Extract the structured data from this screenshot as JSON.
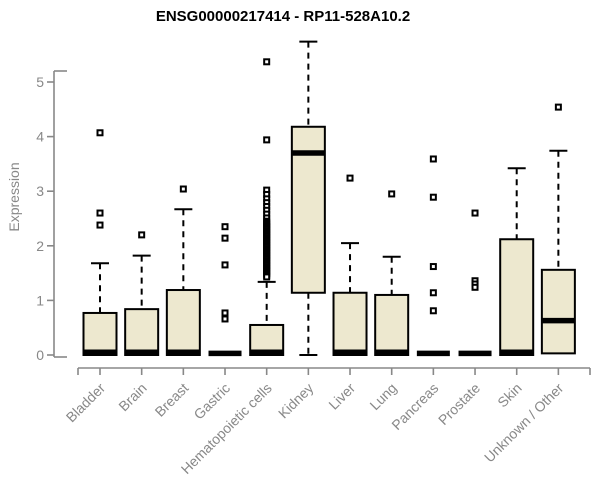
{
  "chart_data": {
    "type": "boxplot",
    "title": "ENSG00000217414 - RP11-528A10.2",
    "xlabel": "",
    "ylabel": "Expression",
    "ylim": [
      0,
      5.8
    ],
    "yticks": [
      0,
      1,
      2,
      3,
      4,
      5
    ],
    "grid": false,
    "legend": null,
    "categories": [
      "Bladder",
      "Brain",
      "Breast",
      "Gastric",
      "Hematopoietic cells",
      "Kidney",
      "Liver",
      "Lung",
      "Pancreas",
      "Prostate",
      "Skin",
      "Unknown / Other"
    ],
    "series": [
      {
        "name": "Bladder",
        "low": 0,
        "q1": 0,
        "median": 0.05,
        "q3": 0.77,
        "high": 1.68,
        "outliers": [
          4.07,
          2.6,
          2.38
        ]
      },
      {
        "name": "Brain",
        "low": 0,
        "q1": 0,
        "median": 0.05,
        "q3": 0.84,
        "high": 1.82,
        "outliers": [
          2.2
        ]
      },
      {
        "name": "Breast",
        "low": 0,
        "q1": 0,
        "median": 0.05,
        "q3": 1.19,
        "high": 2.67,
        "outliers": [
          3.04
        ]
      },
      {
        "name": "Gastric",
        "low": 0,
        "q1": 0,
        "median": 0.03,
        "q3": 0,
        "high": 0,
        "outliers": [
          2.35,
          2.14,
          1.65,
          0.77,
          0.66
        ]
      },
      {
        "name": "Hematopoietic cells",
        "low": 0,
        "q1": 0,
        "median": 0.05,
        "q3": 0.55,
        "high": 1.34,
        "outliers": [
          5.37,
          3.94,
          3.02,
          2.94,
          2.86,
          2.79,
          2.72,
          2.65,
          2.58,
          2.51,
          2.45,
          2.42,
          2.39,
          2.36,
          2.33,
          2.3,
          2.27,
          2.24,
          2.21,
          2.18,
          2.15,
          2.12,
          2.09,
          2.06,
          2.03,
          2.0,
          1.97,
          1.94,
          1.91,
          1.88,
          1.85,
          1.82,
          1.79,
          1.76,
          1.73,
          1.7,
          1.67,
          1.64,
          1.61,
          1.58,
          1.55,
          1.52,
          1.49,
          1.46,
          1.43
        ]
      },
      {
        "name": "Kidney",
        "low": 0,
        "q1": 1.14,
        "median": 3.7,
        "q3": 4.18,
        "high": 5.74,
        "outliers": []
      },
      {
        "name": "Liver",
        "low": 0,
        "q1": 0,
        "median": 0.05,
        "q3": 1.14,
        "high": 2.05,
        "outliers": [
          3.24
        ]
      },
      {
        "name": "Lung",
        "low": 0,
        "q1": 0,
        "median": 0.05,
        "q3": 1.1,
        "high": 1.8,
        "outliers": [
          2.95
        ]
      },
      {
        "name": "Pancreas",
        "low": 0,
        "q1": 0,
        "median": 0.03,
        "q3": 0,
        "high": 0,
        "outliers": [
          3.59,
          2.89,
          1.62,
          1.14,
          0.81
        ]
      },
      {
        "name": "Prostate",
        "low": 0,
        "q1": 0,
        "median": 0.03,
        "q3": 0,
        "high": 0,
        "outliers": [
          2.6,
          1.36,
          1.3,
          1.24
        ]
      },
      {
        "name": "Skin",
        "low": 0,
        "q1": 0,
        "median": 0.05,
        "q3": 2.12,
        "high": 3.42,
        "outliers": []
      },
      {
        "name": "Unknown / Other",
        "low": 0,
        "q1": 0.03,
        "median": 0.63,
        "q3": 1.56,
        "high": 3.74,
        "outliers": [
          4.54
        ]
      }
    ],
    "colors": {
      "box_fill": "#EDE8CF",
      "box_border": "#000000",
      "median": "#000000",
      "whisker": "#000000",
      "outlier": "#000000",
      "axis": "#888888",
      "tick_label": "#888888",
      "title": "#000000",
      "background": "#FFFFFF"
    }
  }
}
